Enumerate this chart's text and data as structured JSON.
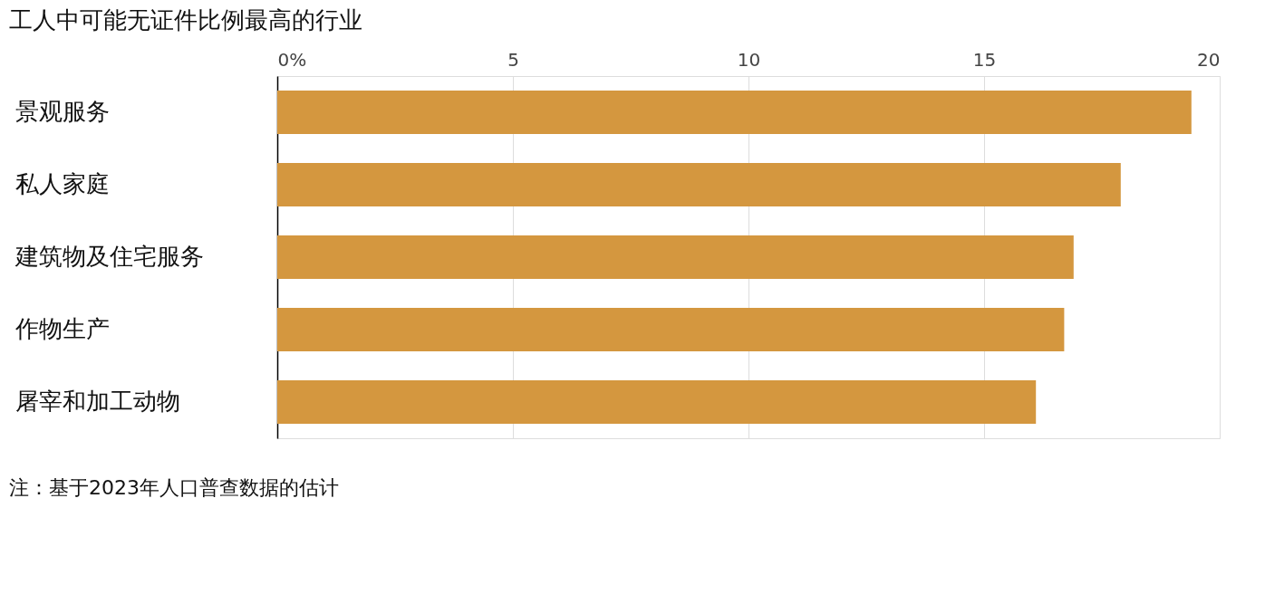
{
  "chart_data": {
    "type": "bar",
    "orientation": "horizontal",
    "title": "工人中可能无证件比例最高的行业",
    "categories": [
      "景观服务",
      "私人家庭",
      "建筑物及住宅服务",
      "作物生产",
      "屠宰和加工动物"
    ],
    "values": [
      19.4,
      17.9,
      16.9,
      16.7,
      16.1
    ],
    "color": "#d4973f",
    "xlim": [
      0,
      20
    ],
    "xticks": [
      {
        "value": 0,
        "label": "0%"
      },
      5,
      10,
      15,
      20
    ],
    "grid": "x",
    "annotations": [
      "注：基于2023年人口普查数据的估计"
    ]
  }
}
